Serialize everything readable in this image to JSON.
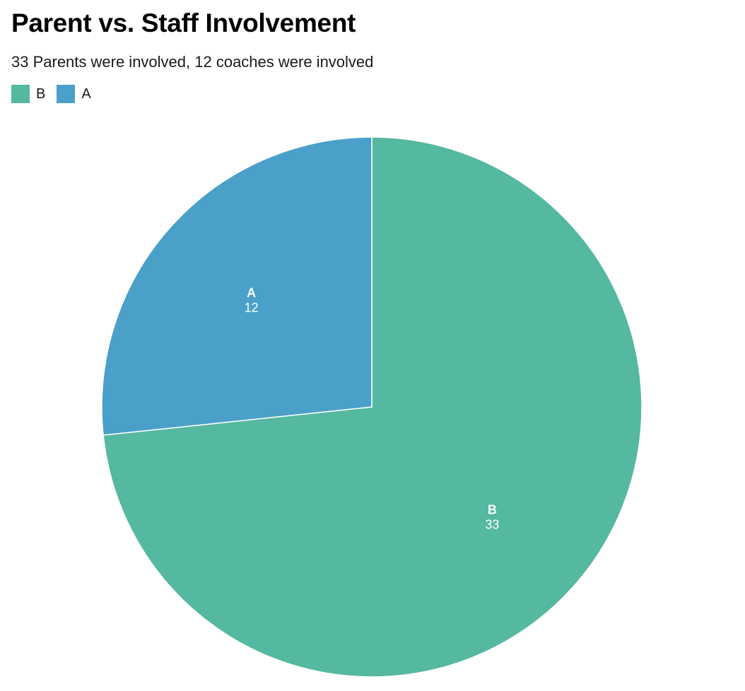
{
  "chart_data": {
    "type": "pie",
    "title": "Parent vs. Staff Involvement",
    "subtitle": "33 Parents were involved, 12 coaches were involved",
    "categories": [
      "B",
      "A"
    ],
    "values": [
      33,
      12
    ],
    "colors": [
      "#55b8a0",
      "#4aa0c8"
    ],
    "legend": {
      "position": "top-left",
      "entries": [
        "B",
        "A"
      ]
    }
  }
}
